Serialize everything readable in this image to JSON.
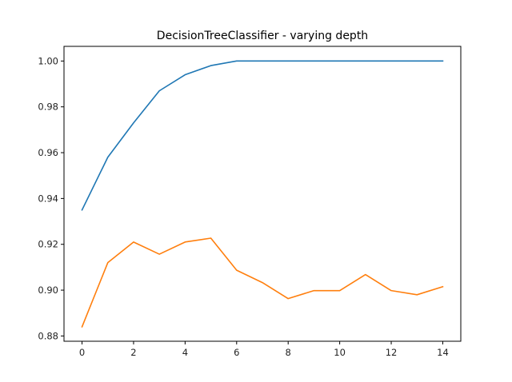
{
  "chart_data": {
    "type": "line",
    "title": "DecisionTreeClassifier - varying depth",
    "xlabel": "",
    "ylabel": "",
    "xlim": [
      -0.7,
      14.7
    ],
    "ylim": [
      0.8777,
      1.0064
    ],
    "xticks": [
      0,
      2,
      4,
      6,
      8,
      10,
      12,
      14
    ],
    "xtick_labels": [
      "0",
      "2",
      "4",
      "6",
      "8",
      "10",
      "12",
      "14"
    ],
    "yticks": [
      0.88,
      0.9,
      0.92,
      0.94,
      0.96,
      0.98,
      1.0
    ],
    "ytick_labels": [
      "0.88",
      "0.90",
      "0.92",
      "0.94",
      "0.96",
      "0.98",
      "1.00"
    ],
    "grid": false,
    "legend": "none",
    "x": [
      0,
      1,
      2,
      3,
      4,
      5,
      6,
      7,
      8,
      9,
      10,
      11,
      12,
      13,
      14
    ],
    "series": [
      {
        "color": "#1f77b4",
        "values": [
          0.935,
          0.958,
          0.973,
          0.987,
          0.994,
          0.998,
          1.0,
          1.0,
          1.0,
          1.0,
          1.0,
          1.0,
          1.0,
          1.0,
          1.0
        ]
      },
      {
        "color": "#ff7f0e",
        "values": [
          0.884,
          0.912,
          0.921,
          0.9157,
          0.921,
          0.9227,
          0.9087,
          0.9033,
          0.8963,
          0.8998,
          0.8998,
          0.9068,
          0.8998,
          0.898,
          0.9015
        ]
      }
    ]
  }
}
